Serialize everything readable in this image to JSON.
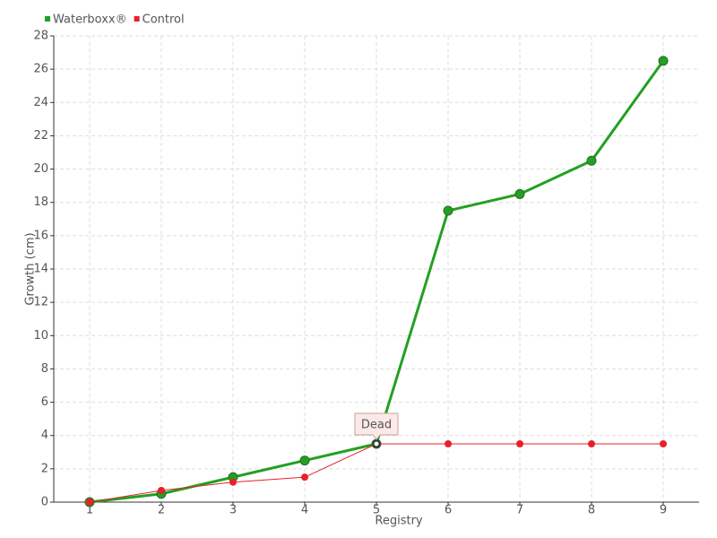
{
  "chart_data": {
    "type": "line",
    "x_label": "Registry",
    "y_label": "Growth (cm)",
    "x": [
      1,
      2,
      3,
      4,
      5,
      6,
      7,
      8,
      9
    ],
    "series": [
      {
        "name": "Waterboxx®",
        "color": "#22a022",
        "values": [
          0,
          0.5,
          1.5,
          2.5,
          3.5,
          17.5,
          18.5,
          20.5,
          26.5
        ]
      },
      {
        "name": "Control",
        "color": "#e8202a",
        "values": [
          0,
          0.7,
          1.2,
          1.5,
          3.5,
          3.5,
          3.5,
          3.5,
          3.5
        ]
      }
    ],
    "xlim": [
      0.5,
      9.5
    ],
    "xticks": [
      1,
      2,
      3,
      4,
      5,
      6,
      7,
      8,
      9
    ],
    "ylim": [
      0,
      28
    ],
    "yticks": [
      0,
      2,
      4,
      6,
      8,
      10,
      12,
      14,
      16,
      18,
      20,
      22,
      24,
      26,
      28
    ],
    "grid": true,
    "annotations": [
      {
        "text": "Dead",
        "x": 5,
        "y": 3.5
      }
    ]
  }
}
